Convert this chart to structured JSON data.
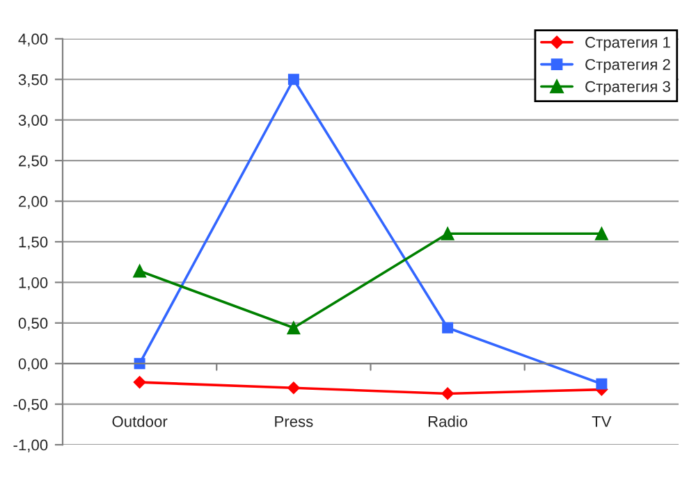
{
  "chart_data": {
    "type": "line",
    "categories": [
      "Outdoor",
      "Press",
      "Radio",
      "TV"
    ],
    "series": [
      {
        "name": "Стратегия 1",
        "color": "#ff0000",
        "marker": "diamond",
        "values": [
          -0.23,
          -0.3,
          -0.37,
          -0.32
        ]
      },
      {
        "name": "Стратегия 2",
        "color": "#3366ff",
        "marker": "square",
        "values": [
          0.0,
          3.5,
          0.44,
          -0.25
        ]
      },
      {
        "name": "Стратегия 3",
        "color": "#008000",
        "marker": "triangle",
        "values": [
          1.14,
          0.44,
          1.6,
          1.6
        ]
      }
    ],
    "ylim": [
      -1,
      4
    ],
    "yticks": [
      {
        "value": -1,
        "label": "-1,00"
      },
      {
        "value": -0.5,
        "label": "-0,50"
      },
      {
        "value": 0,
        "label": "0,00"
      },
      {
        "value": 0.5,
        "label": "0,50"
      },
      {
        "value": 1,
        "label": "1,00"
      },
      {
        "value": 1.5,
        "label": "1,50"
      },
      {
        "value": 2,
        "label": "2,00"
      },
      {
        "value": 2.5,
        "label": "2,50"
      },
      {
        "value": 3,
        "label": "3,00"
      },
      {
        "value": 3.5,
        "label": "3,50"
      },
      {
        "value": 4,
        "label": "4,00"
      }
    ],
    "grid": "y",
    "legend": "top right",
    "line_style": "solid"
  }
}
